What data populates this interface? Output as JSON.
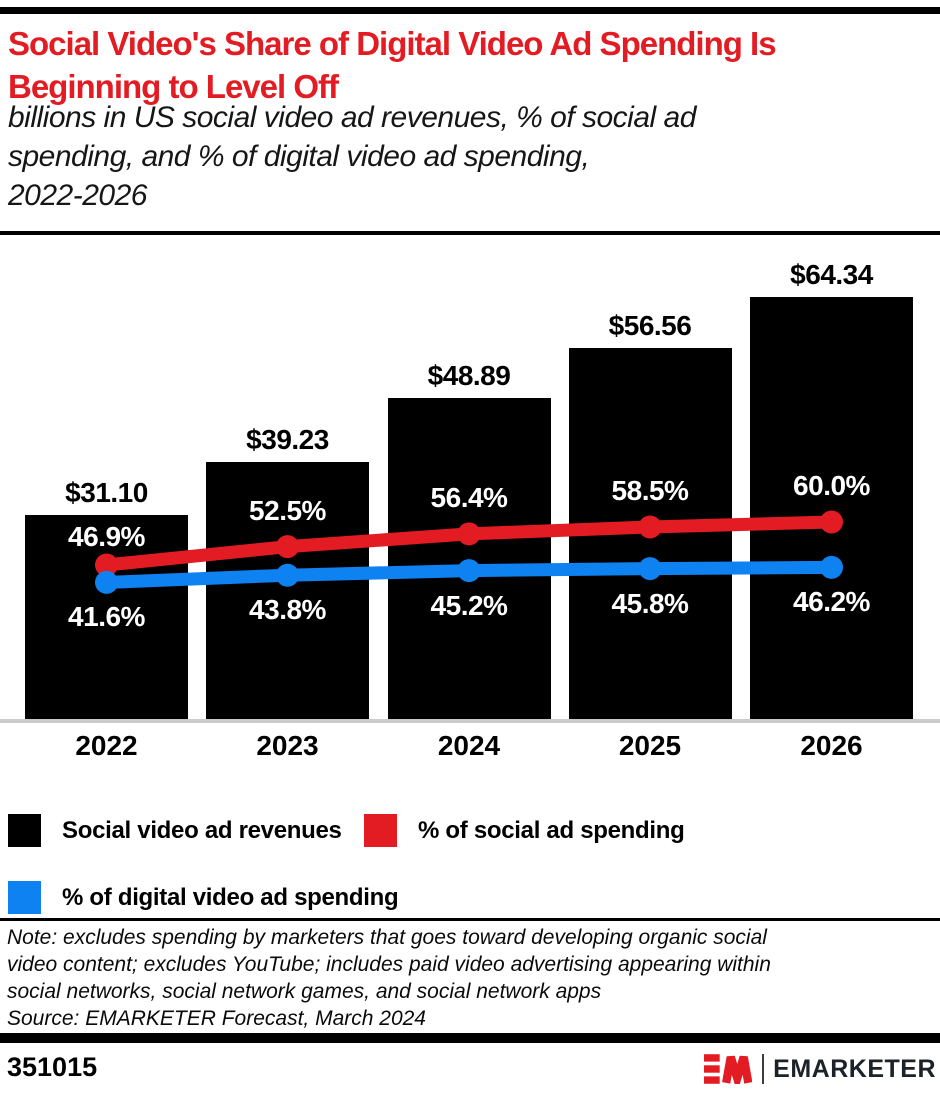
{
  "header": {
    "title_lines": [
      "Social Video's Share of Digital Video Ad Spending Is",
      "Beginning to Level Off"
    ],
    "title_color": "#e31b23",
    "subtitle_lines": [
      "billions in US social video ad revenues, % of social ad",
      "spending, and % of digital video ad spending,",
      "2022-2026"
    ]
  },
  "chart_data": {
    "type": "bar",
    "title": "Social Video's Share of Digital Video Ad Spending Is Beginning to Level Off",
    "subtitle": "billions in US social video ad revenues, % of social ad spending, and % of digital video ad spending, 2022-2026",
    "categories": [
      "2022",
      "2023",
      "2024",
      "2025",
      "2026"
    ],
    "bar_series": {
      "name": "Social video ad revenues",
      "unit": "USD billions",
      "color": "#000000",
      "values": [
        31.1,
        39.23,
        48.89,
        56.56,
        64.34
      ],
      "labels": [
        "$31.10",
        "$39.23",
        "$48.89",
        "$56.56",
        "$64.34"
      ]
    },
    "line_series": [
      {
        "name": "% of social ad spending",
        "color": "#e31b23",
        "values": [
          46.9,
          52.5,
          56.4,
          58.5,
          60.0
        ],
        "labels": [
          "46.9%",
          "52.5%",
          "56.4%",
          "58.5%",
          "60.0%"
        ]
      },
      {
        "name": "% of digital video ad spending",
        "color": "#0f82f2",
        "values": [
          41.6,
          43.8,
          45.2,
          45.8,
          46.2
        ],
        "labels": [
          "41.6%",
          "43.8%",
          "45.2%",
          "45.8%",
          "46.2%"
        ]
      }
    ],
    "value_axis": {
      "min": 0,
      "unit": "$ billions",
      "visible": false
    },
    "pct_axis": {
      "min": 0,
      "unit": "%",
      "visible": false
    },
    "grid": false,
    "legend_position": "bottom",
    "axis_line_color": "#cbcbcb"
  },
  "legend": {
    "items": [
      {
        "label": "Social video ad revenues",
        "color": "#000000"
      },
      {
        "label": "% of social ad spending",
        "color": "#e31b23"
      },
      {
        "label": "% of digital video ad spending",
        "color": "#0f82f2"
      }
    ]
  },
  "note_lines": [
    "Note: excludes spending by marketers that goes toward developing organic social",
    "video content; excludes YouTube; includes paid video advertising appearing within",
    "social networks, social network games, and social network apps"
  ],
  "source": "Source: EMARKETER Forecast, March 2024",
  "footer": {
    "chart_id": "351015",
    "brand": "EMARKETER",
    "logo_mark": "EM",
    "logo_color": "#e31b23"
  }
}
